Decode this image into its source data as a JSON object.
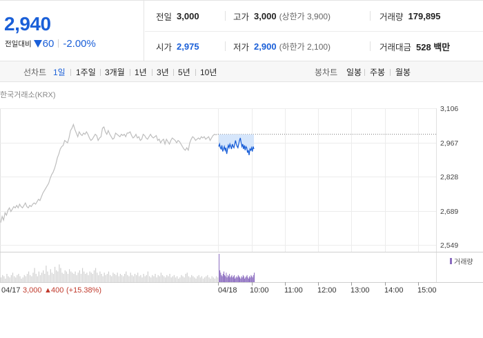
{
  "summary": {
    "current_price": "2,940",
    "change_label": "전일대비",
    "change_amount": "60",
    "change_rate": "-2.00%",
    "prev_close_label": "전일",
    "prev_close": "3,000",
    "high_label": "고가",
    "high": "3,000",
    "upper_limit": "(상한가 3,900)",
    "volume_label": "거래량",
    "volume": "179,895",
    "open_label": "시가",
    "open": "2,975",
    "low_label": "저가",
    "low": "2,900",
    "lower_limit": "(하한가 2,100)",
    "value_label": "거래대금",
    "value": "528 백만"
  },
  "period_bar": {
    "line_label": "선차트",
    "line_periods": [
      "1일",
      "1주일",
      "3개월",
      "1년",
      "3년",
      "5년",
      "10년"
    ],
    "active_period": "1일",
    "candle_label": "봉차트",
    "candle_periods": [
      "일봉",
      "주봉",
      "월봉"
    ]
  },
  "source": "한국거래소(KRX)",
  "legend_label": "거래량",
  "colors": {
    "accent": "#1a5fd8",
    "rise": "#c0392b",
    "volume": "#8a6bbf",
    "prev_line": "#bdbdbd"
  },
  "prev_day_info": {
    "date": "04/17",
    "close": "3,000",
    "change": "400",
    "rate": "(+15.38%)"
  },
  "chart_data": {
    "type": "line",
    "y_ticks": [
      "3,106",
      "2,967",
      "2,828",
      "2,689",
      "2,549"
    ],
    "ylim": [
      2549,
      3106
    ],
    "reference_price": 3000,
    "x_ticks": [
      "04/18",
      "10:00",
      "11:00",
      "12:00",
      "13:00",
      "14:00",
      "15:00"
    ],
    "series": [
      {
        "values": [
          2640,
          2665,
          2650,
          2680,
          2670,
          2690,
          2700,
          2685,
          2695,
          2705,
          2700,
          2710,
          2700,
          2715,
          2705,
          2700,
          2710,
          2720,
          2705,
          2700,
          2710,
          2705,
          2715,
          2720,
          2715,
          2725,
          2735,
          2730,
          2745,
          2760,
          2770,
          2780,
          2790,
          2800,
          2820,
          2835,
          2845,
          2860,
          2880,
          2905,
          2920,
          2940,
          2950,
          2955,
          2975,
          2970,
          2965,
          2985,
          3015,
          3025,
          3040,
          3020,
          3005,
          2990,
          3010,
          3000,
          2995,
          3005,
          3000,
          3010,
          3000,
          2985,
          2975,
          2980,
          2990,
          3000,
          2995,
          2975,
          2985,
          2990,
          3025,
          3030,
          3010,
          3000,
          3015,
          3000,
          2990,
          2980,
          2985,
          3005,
          3000,
          2995,
          2990,
          3000,
          2995,
          3000,
          2990,
          3005,
          3005,
          3010,
          2995,
          2985,
          2990,
          3000,
          2985,
          2990,
          2975,
          2980,
          3000,
          2995,
          2985,
          2980,
          2990,
          3000,
          2990,
          2985,
          2990,
          2995,
          2975,
          2980,
          2965,
          2975,
          2980,
          2960,
          2980,
          2970,
          2960,
          2975,
          2985,
          2980,
          2975,
          2965,
          2975,
          2970,
          2960,
          2950,
          2940,
          2935,
          2945,
          2935,
          2965,
          2980,
          2990,
          2985,
          2975,
          2980,
          2985,
          2980,
          2990,
          2985,
          2990,
          2980,
          2985,
          2990,
          2975,
          2985,
          2995,
          3000,
          2998,
          3000
        ]
      },
      {
        "values": [
          2950,
          2960,
          2945,
          2940,
          2955,
          2930,
          2940,
          2950,
          2935,
          2945,
          2920,
          2940,
          2955,
          2945,
          2960,
          2950,
          2940,
          2960,
          2950,
          2945,
          2960,
          2975,
          2960,
          2950,
          2945,
          2960,
          2975,
          2985,
          2965,
          2950,
          2960,
          2940,
          2955,
          2935,
          2950,
          2945,
          2925,
          2935,
          2915,
          2940,
          2935,
          2945,
          2930,
          2950,
          2940
        ]
      }
    ],
    "volume": {
      "prev": [
        4,
        6,
        5,
        3,
        7,
        5,
        4,
        6,
        8,
        5,
        4,
        6,
        7,
        5,
        3,
        4,
        6,
        5,
        7,
        9,
        6,
        5,
        8,
        12,
        7,
        5,
        9,
        6,
        8,
        10,
        7,
        14,
        9,
        6,
        11,
        8,
        7,
        13,
        10,
        9,
        15,
        12,
        8,
        7,
        10,
        9,
        7,
        11,
        9,
        8,
        7,
        9,
        6,
        8,
        10,
        7,
        12,
        9,
        7,
        8,
        6,
        9,
        8,
        7,
        10,
        12,
        8,
        6,
        9,
        7,
        5,
        8,
        6,
        7,
        9,
        6,
        5,
        8,
        7,
        6,
        8,
        5,
        7,
        6,
        5,
        7,
        9,
        6,
        5,
        8,
        6,
        5,
        7,
        6,
        8,
        5,
        6,
        4,
        7,
        5,
        6,
        9,
        5,
        4,
        6,
        5,
        7,
        4,
        6,
        5,
        8,
        6,
        5,
        4,
        6,
        5,
        7,
        4,
        5,
        6,
        4,
        5,
        3,
        4,
        6,
        5,
        4,
        7,
        8,
        5,
        4,
        6,
        5,
        4,
        3,
        5,
        6,
        4,
        5,
        3,
        4,
        5,
        6,
        4,
        3,
        5,
        4,
        3,
        5,
        4
      ],
      "current": [
        24,
        10,
        8,
        6,
        5,
        7,
        9,
        6,
        5,
        8,
        4,
        6,
        5,
        7,
        4,
        5,
        6,
        4,
        5,
        6,
        3,
        4,
        5,
        4,
        6,
        5,
        4,
        3,
        5,
        4,
        6,
        5,
        3,
        4,
        5,
        6,
        4,
        3,
        5,
        4,
        6,
        5,
        4,
        6,
        8
      ]
    }
  }
}
